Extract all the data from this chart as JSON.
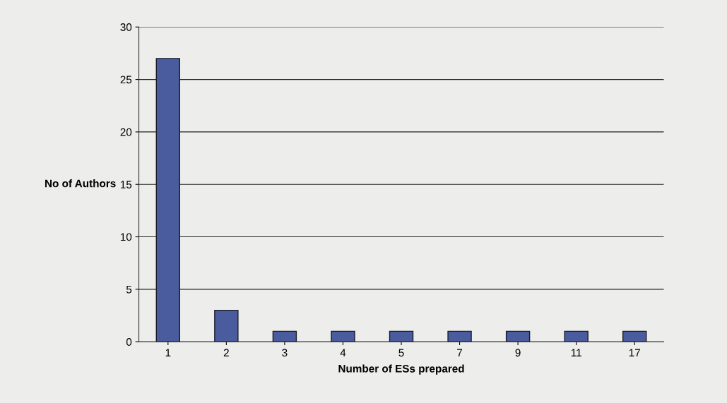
{
  "chart_data": {
    "type": "bar",
    "categories": [
      "1",
      "2",
      "3",
      "4",
      "5",
      "7",
      "9",
      "11",
      "17"
    ],
    "values": [
      27,
      3,
      1,
      1,
      1,
      1,
      1,
      1,
      1
    ],
    "color": "#4a5c9e",
    "xlabel": "Number of ESs prepared",
    "ylabel": "No of Authors",
    "ylim": [
      0,
      30
    ],
    "yticks": [
      0,
      5,
      10,
      15,
      20,
      25,
      30
    ],
    "grid": "y",
    "legend": false
  }
}
